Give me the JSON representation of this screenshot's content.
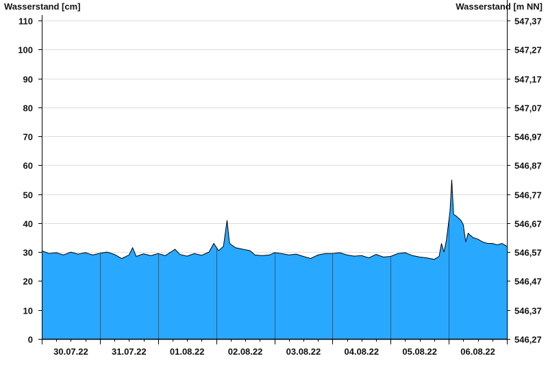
{
  "chart_data": {
    "type": "area",
    "ylabel_left": "Wasserstand [cm]",
    "ylabel_right": "Wasserstand [m NN]",
    "ylim": [
      0,
      110
    ],
    "yticks_left": [
      "0",
      "10",
      "20",
      "30",
      "40",
      "50",
      "60",
      "70",
      "80",
      "90",
      "100",
      "110"
    ],
    "yticks_right": [
      "546,27",
      "546,37",
      "546,47",
      "546,57",
      "546,67",
      "546,77",
      "546,87",
      "546,97",
      "547,07",
      "547,17",
      "547,27",
      "547,37"
    ],
    "xlim": [
      "30.07.22 00:00",
      "07.08.22 00:00"
    ],
    "xtick_labels": [
      "30.07.22",
      "31.07.22",
      "01.08.22",
      "02.08.22",
      "03.08.22",
      "04.08.22",
      "05.08.22",
      "06.08.22"
    ],
    "grid": true,
    "fill_color": "#29a8ff",
    "points": [
      [
        "30.07.22 00:00",
        30.5
      ],
      [
        "30.07.22 03:00",
        29.5
      ],
      [
        "30.07.22 06:00",
        29.8
      ],
      [
        "30.07.22 09:00",
        29.0
      ],
      [
        "30.07.22 12:00",
        30.0
      ],
      [
        "30.07.22 15:00",
        29.3
      ],
      [
        "30.07.22 18:00",
        29.8
      ],
      [
        "30.07.22 21:00",
        29.0
      ],
      [
        "31.07.22 00:00",
        29.6
      ],
      [
        "31.07.22 03:00",
        30.0
      ],
      [
        "31.07.22 06:00",
        29.2
      ],
      [
        "31.07.22 09:00",
        27.8
      ],
      [
        "31.07.22 12:00",
        29.0
      ],
      [
        "31.07.22 13:30",
        31.5
      ],
      [
        "31.07.22 15:00",
        28.5
      ],
      [
        "31.07.22 18:00",
        29.4
      ],
      [
        "31.07.22 21:00",
        28.8
      ],
      [
        "01.08.22 00:00",
        29.5
      ],
      [
        "01.08.22 03:00",
        28.8
      ],
      [
        "01.08.22 07:00",
        31.0
      ],
      [
        "01.08.22 09:00",
        29.2
      ],
      [
        "01.08.22 12:00",
        28.6
      ],
      [
        "01.08.22 15:00",
        29.5
      ],
      [
        "01.08.22 18:00",
        28.9
      ],
      [
        "01.08.22 21:00",
        30.0
      ],
      [
        "01.08.22 23:00",
        33.0
      ],
      [
        "02.08.22 01:00",
        30.5
      ],
      [
        "02.08.22 03:00",
        32.0
      ],
      [
        "02.08.22 04:30",
        41.0
      ],
      [
        "02.08.22 05:30",
        33.0
      ],
      [
        "02.08.22 08:00",
        31.5
      ],
      [
        "02.08.22 11:00",
        31.0
      ],
      [
        "02.08.22 14:00",
        30.5
      ],
      [
        "02.08.22 16:00",
        29.0
      ],
      [
        "02.08.22 19:00",
        28.8
      ],
      [
        "02.08.22 22:00",
        29.0
      ],
      [
        "03.08.22 00:00",
        29.8
      ],
      [
        "03.08.22 03:00",
        29.5
      ],
      [
        "03.08.22 06:00",
        29.0
      ],
      [
        "03.08.22 09:00",
        29.3
      ],
      [
        "03.08.22 12:00",
        28.5
      ],
      [
        "03.08.22 15:00",
        27.8
      ],
      [
        "03.08.22 18:00",
        29.0
      ],
      [
        "03.08.22 21:00",
        29.5
      ],
      [
        "04.08.22 00:00",
        29.5
      ],
      [
        "04.08.22 03:00",
        29.8
      ],
      [
        "04.08.22 06:00",
        29.0
      ],
      [
        "04.08.22 09:00",
        28.6
      ],
      [
        "04.08.22 12:00",
        28.8
      ],
      [
        "04.08.22 15:00",
        28.0
      ],
      [
        "04.08.22 18:00",
        29.2
      ],
      [
        "04.08.22 21:00",
        28.3
      ],
      [
        "05.08.22 00:00",
        28.5
      ],
      [
        "05.08.22 03:00",
        29.5
      ],
      [
        "05.08.22 06:00",
        29.8
      ],
      [
        "05.08.22 09:00",
        28.8
      ],
      [
        "05.08.22 12:00",
        28.3
      ],
      [
        "05.08.22 15:00",
        28.0
      ],
      [
        "05.08.22 18:00",
        27.5
      ],
      [
        "05.08.22 20:00",
        28.5
      ],
      [
        "05.08.22 21:00",
        33.0
      ],
      [
        "05.08.22 22:00",
        30.0
      ],
      [
        "05.08.22 23:00",
        34.0
      ],
      [
        "06.08.22 00:30",
        44.0
      ],
      [
        "06.08.22 01:15",
        55.0
      ],
      [
        "06.08.22 02:00",
        43.0
      ],
      [
        "06.08.22 03:00",
        42.5
      ],
      [
        "06.08.22 05:00",
        41.0
      ],
      [
        "06.08.22 06:00",
        39.5
      ],
      [
        "06.08.22 07:00",
        33.5
      ],
      [
        "06.08.22 08:00",
        36.5
      ],
      [
        "06.08.22 10:00",
        35.0
      ],
      [
        "06.08.22 12:00",
        34.5
      ],
      [
        "06.08.22 14:00",
        33.5
      ],
      [
        "06.08.22 16:00",
        33.0
      ],
      [
        "06.08.22 18:00",
        33.0
      ],
      [
        "06.08.22 20:00",
        32.5
      ],
      [
        "06.08.22 22:00",
        33.0
      ],
      [
        "06.08.22 23:59",
        32.0
      ]
    ]
  }
}
